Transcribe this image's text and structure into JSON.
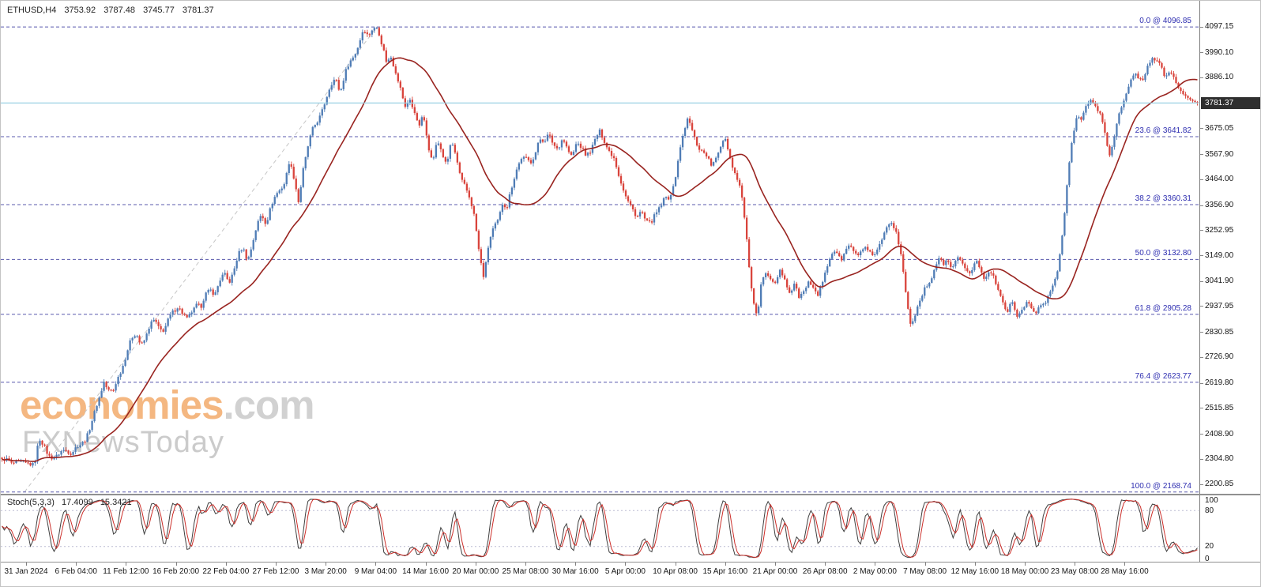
{
  "colors": {
    "up_candle": "#4f7cb5",
    "down_candle": "#d9443c",
    "moving_average": "#992420",
    "fib_line": "#3c3c9e",
    "fib_label": "#2d2db0",
    "current_price_line": "#9ad1e4",
    "current_price_tag_bg": "#2f2f2f",
    "stoch_main": "#3f3f3f",
    "stoch_signal": "#cc2f2a",
    "watermark_orange": "#f2a35e",
    "watermark_gray": "#c7c7c7"
  },
  "watermark": {
    "brand": "economies",
    "tld": ".com",
    "subtitle": "FXNewsToday"
  },
  "chart_data": {
    "type": "candlestick",
    "symbol": "ETHUSD",
    "timeframe": "H4",
    "title": "ETHUSD,H4",
    "ohlc": {
      "open": "3753.92",
      "high": "3787.48",
      "low": "3745.77",
      "close": "3781.37"
    },
    "current_price": "3781.37",
    "ylim": [
      2200.85,
      4097.15
    ],
    "price_axis_ticks": [
      "4097.15",
      "3990.10",
      "3886.10",
      "3675.05",
      "3567.90",
      "3464.00",
      "3356.90",
      "3252.95",
      "3149.00",
      "3041.90",
      "2937.95",
      "2830.85",
      "2726.90",
      "2619.80",
      "2515.85",
      "2408.90",
      "2304.80",
      "2200.85"
    ],
    "time_axis_labels": [
      "31 Jan 2024",
      "6 Feb 04:00",
      "11 Feb 12:00",
      "16 Feb 20:00",
      "22 Feb 04:00",
      "27 Feb 12:00",
      "3 Mar 20:00",
      "9 Mar 04:00",
      "14 Mar 16:00",
      "20 Mar 00:00",
      "25 Mar 08:00",
      "30 Mar 16:00",
      "5 Apr 00:00",
      "10 Apr 08:00",
      "15 Apr 16:00",
      "21 Apr 00:00",
      "26 Apr 08:00",
      "2 May 00:00",
      "7 May 08:00",
      "12 May 16:00",
      "18 May 00:00",
      "23 May 08:00",
      "28 May 16:00"
    ],
    "fibonacci_levels": [
      {
        "label": "0.0 @ 4096.85",
        "price": 4096.85
      },
      {
        "label": "23.6 @ 3641.82",
        "price": 3641.82
      },
      {
        "label": "38.2 @ 3360.31",
        "price": 3360.31
      },
      {
        "label": "50.0 @ 3132.80",
        "price": 3132.8
      },
      {
        "label": "61.8 @ 2905.28",
        "price": 2905.28
      },
      {
        "label": "76.4 @ 2623.77",
        "price": 2623.77
      },
      {
        "label": "100.0 @ 2168.74",
        "price": 2168.74
      }
    ],
    "close_waypoints": [
      2300,
      2290,
      2280,
      2295,
      2285,
      2275,
      2290,
      2300,
      2395,
      2360,
      2330,
      2320,
      2310,
      2325,
      2340,
      2330,
      2345,
      2360,
      2400,
      2450,
      2500,
      2560,
      2635,
      2590,
      2570,
      2630,
      2690,
      2750,
      2800,
      2830,
      2795,
      2815,
      2860,
      2885,
      2850,
      2830,
      2870,
      2915,
      2945,
      2905,
      2880,
      2930,
      2960,
      2940,
      2985,
      3010,
      2990,
      3030,
      3060,
      3040,
      3090,
      3150,
      3185,
      3145,
      3205,
      3265,
      3315,
      3285,
      3345,
      3380,
      3415,
      3460,
      3545,
      3470,
      3380,
      3520,
      3600,
      3660,
      3700,
      3745,
      3790,
      3845,
      3890,
      3835,
      3905,
      3950,
      3990,
      4035,
      4080,
      4045,
      4090,
      4096,
      4010,
      3945,
      3985,
      3920,
      3840,
      3765,
      3815,
      3740,
      3675,
      3720,
      3595,
      3545,
      3615,
      3570,
      3550,
      3630,
      3555,
      3475,
      3445,
      3375,
      3290,
      3155,
      3060,
      3185,
      3255,
      3305,
      3380,
      3350,
      3430,
      3510,
      3555,
      3535,
      3520,
      3570,
      3635,
      3615,
      3655,
      3630,
      3600,
      3630,
      3590,
      3565,
      3610,
      3580,
      3560,
      3590,
      3630,
      3660,
      3635,
      3600,
      3560,
      3480,
      3430,
      3380,
      3330,
      3290,
      3340,
      3300,
      3280,
      3320,
      3365,
      3400,
      3380,
      3425,
      3560,
      3650,
      3700,
      3660,
      3620,
      3590,
      3565,
      3530,
      3560,
      3600,
      3630,
      3560,
      3500,
      3450,
      3340,
      3160,
      2980,
      2890,
      3050,
      3100,
      3060,
      3020,
      3080,
      3040,
      2985,
      3025,
      2965,
      3010,
      3060,
      3025,
      2985,
      3045,
      3100,
      3140,
      3160,
      3130,
      3165,
      3185,
      3155,
      3175,
      3190,
      3160,
      3145,
      3185,
      3205,
      3245,
      3285,
      3250,
      3150,
      3000,
      2875,
      2920,
      2960,
      3000,
      3040,
      3080,
      3120,
      3100,
      3130,
      3105,
      3125,
      3140,
      3105,
      3080,
      3120,
      3100,
      3060,
      3080,
      3040,
      3000,
      2960,
      2925,
      2950,
      2905,
      2940,
      2960,
      2925,
      2900,
      2950,
      2930,
      2970,
      3040,
      3110,
      3260,
      3470,
      3660,
      3740,
      3700,
      3755,
      3800,
      3765,
      3720,
      3655,
      3575,
      3650,
      3725,
      3785,
      3850,
      3905,
      3880,
      3860,
      3925,
      3960,
      3935,
      3955,
      3900,
      3920,
      3880,
      3850,
      3820,
      3800,
      3790,
      3781.37
    ],
    "stochastic": {
      "label": "Stoch(5,3,3)",
      "value_main": "17.4099",
      "value_signal": "15.3421",
      "axis_ticks": [
        "100",
        "80",
        "20",
        "0"
      ],
      "level_lines": [
        80,
        20
      ]
    }
  }
}
